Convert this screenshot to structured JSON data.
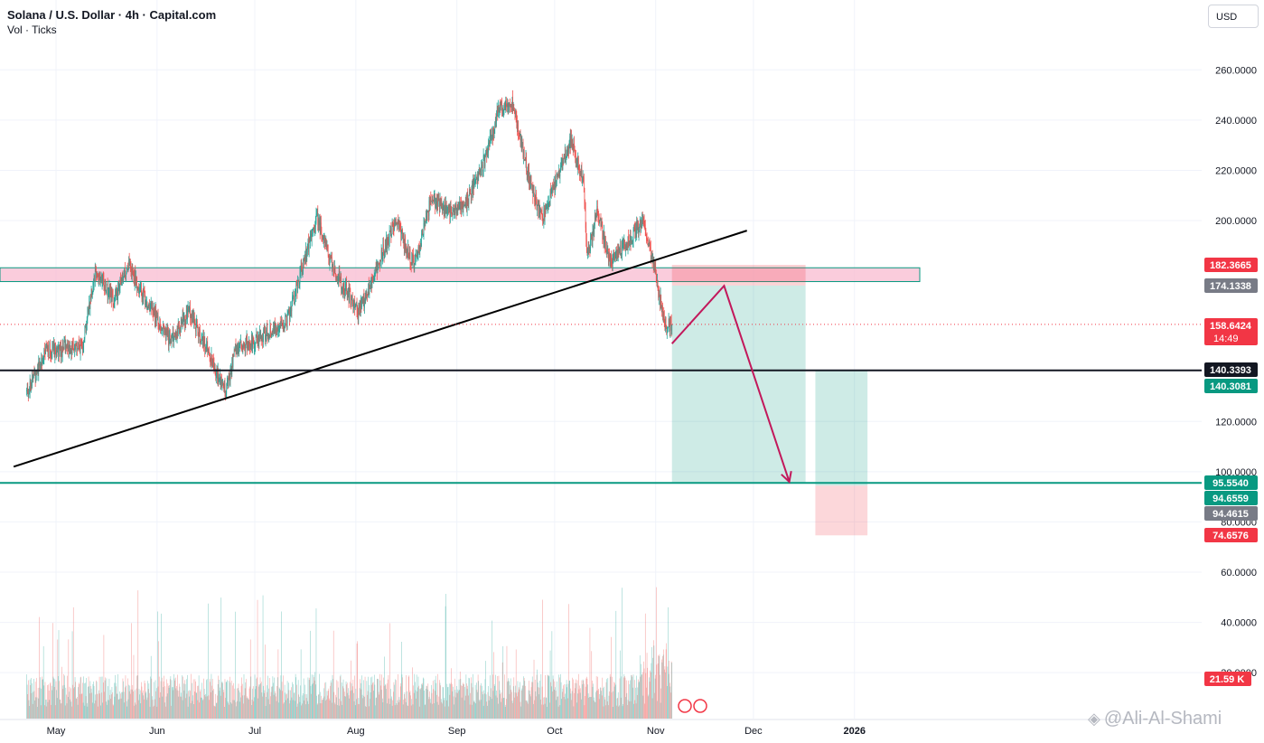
{
  "header": {
    "title": "Solana / U.S. Dollar · 4h · Capital.com",
    "subtitle": "Vol · Ticks"
  },
  "currency_button": "USD",
  "watermark": "@Ali-Al-Shami",
  "colors": {
    "up": "#26a69a",
    "down": "#ef5350",
    "price_red": "#f23645",
    "label_green": "#089981",
    "label_gray": "#787b86",
    "zone_pink": "#f8bbd0",
    "zone_green": "#b2dfdb"
  },
  "chart_data": {
    "type": "candlestick",
    "timeframe": "4h",
    "x_axis_labels": [
      "May",
      "Jun",
      "Jul",
      "Aug",
      "Sep",
      "Oct",
      "Nov",
      "Dec",
      "2026"
    ],
    "y_axis_labels": [
      "260.0000",
      "240.0000",
      "220.0000",
      "200.0000",
      "120.0000",
      "100.0000",
      "80.0000",
      "60.0000",
      "40.0000",
      "20.0000"
    ],
    "ylim": [
      12,
      268
    ],
    "price_anchors": [
      {
        "date": "Apr 22",
        "close": 132
      },
      {
        "date": "Apr 28",
        "close": 148
      },
      {
        "date": "May 9",
        "close": 150
      },
      {
        "date": "May 13",
        "close": 180
      },
      {
        "date": "May 19",
        "close": 168
      },
      {
        "date": "May 23",
        "close": 182
      },
      {
        "date": "May 30",
        "close": 165
      },
      {
        "date": "Jun 5",
        "close": 152
      },
      {
        "date": "Jun 11",
        "close": 164
      },
      {
        "date": "Jun 22",
        "close": 132
      },
      {
        "date": "Jun 25",
        "close": 148
      },
      {
        "date": "Jul 3",
        "close": 154
      },
      {
        "date": "Jul 11",
        "close": 160
      },
      {
        "date": "Jul 20",
        "close": 202
      },
      {
        "date": "Jul 24",
        "close": 184
      },
      {
        "date": "Jul 29",
        "close": 172
      },
      {
        "date": "Aug 2",
        "close": 163
      },
      {
        "date": "Aug 13",
        "close": 200
      },
      {
        "date": "Aug 19",
        "close": 182
      },
      {
        "date": "Aug 24",
        "close": 208
      },
      {
        "date": "Aug 30",
        "close": 204
      },
      {
        "date": "Sep 4",
        "close": 207
      },
      {
        "date": "Sep 10",
        "close": 226
      },
      {
        "date": "Sep 14",
        "close": 245
      },
      {
        "date": "Sep 18",
        "close": 246
      },
      {
        "date": "Sep 23",
        "close": 218
      },
      {
        "date": "Sep 27",
        "close": 200
      },
      {
        "date": "Oct 6",
        "close": 232
      },
      {
        "date": "Oct 10",
        "close": 214
      },
      {
        "date": "Oct 11",
        "close": 186
      },
      {
        "date": "Oct 14",
        "close": 203
      },
      {
        "date": "Oct 18",
        "close": 184
      },
      {
        "date": "Oct 24",
        "close": 192
      },
      {
        "date": "Oct 28",
        "close": 200
      },
      {
        "date": "Oct 31",
        "close": 184
      },
      {
        "date": "Nov 4",
        "close": 158
      },
      {
        "date": "Nov 6",
        "close": 158.64
      }
    ],
    "volume_scale": [
      0,
      75
    ],
    "trendline": {
      "from": {
        "date": "Apr 18",
        "price": 102
      },
      "to": {
        "date": "Nov 29",
        "price": 196
      }
    },
    "levels": [
      {
        "name": "support",
        "price": 140.3393,
        "color": "#131722"
      },
      {
        "name": "target",
        "price": 95.554,
        "color": "#089981"
      },
      {
        "name": "current",
        "price": 158.6424,
        "color": "#f23645",
        "style": "dotted"
      }
    ],
    "resistance_zone": {
      "low": 175.7,
      "high": 181.2,
      "from": "Apr 18",
      "to": "Dec 18"
    },
    "short_position": {
      "entry": 174.1338,
      "stop": 182.3665,
      "target": 95.554,
      "from": "Nov 6",
      "to": "Dec 17"
    },
    "long_position": {
      "entry": 94.4615,
      "stop": 74.6576,
      "target": 140.3081,
      "from": "Dec 20",
      "to": "Jan 5"
    },
    "projection_path": [
      {
        "date": "Nov 6",
        "price": 151
      },
      {
        "date": "Nov 22",
        "price": 174
      },
      {
        "date": "Dec 12",
        "price": 96
      }
    ],
    "price_labels": [
      {
        "value": "182.3665",
        "color": "#f23645"
      },
      {
        "value": "174.1338",
        "color": "#787b86"
      },
      {
        "value": "158.6424",
        "extra": "14:49",
        "color": "#f23645"
      },
      {
        "value": "140.3393",
        "color": "#131722"
      },
      {
        "value": "140.3081",
        "color": "#089981"
      },
      {
        "value": "95.5540",
        "color": "#089981"
      },
      {
        "value": "94.6559",
        "color": "#089981"
      },
      {
        "value": "94.4615",
        "color": "#787b86"
      },
      {
        "value": "74.6576",
        "color": "#f23645"
      }
    ],
    "volume_label": {
      "value": "21.59 K",
      "color": "#f23645"
    }
  }
}
